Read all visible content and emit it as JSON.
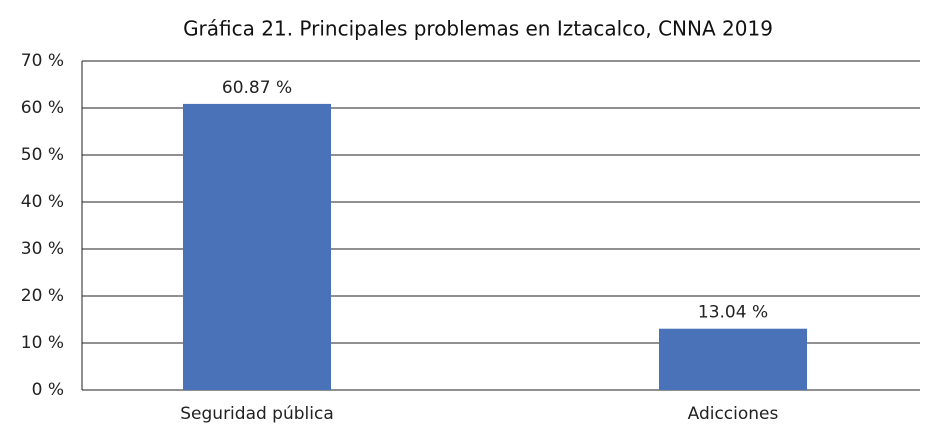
{
  "chart_data": {
    "type": "bar",
    "title": "Gráfica 21. Principales problemas en Iztacalco, CNNA 2019",
    "categories": [
      "Seguridad pública",
      "Adicciones"
    ],
    "values": [
      60.87,
      13.04
    ],
    "value_labels": [
      "60.87 %",
      "13.04 %"
    ],
    "color": "#4a72b8",
    "ylim": [
      0,
      70
    ],
    "yticks": [
      {
        "value": 0,
        "label": "0 %"
      },
      {
        "value": 10,
        "label": "10 %"
      },
      {
        "value": 20,
        "label": "20 %"
      },
      {
        "value": 30,
        "label": "30 %"
      },
      {
        "value": 40,
        "label": "40 %"
      },
      {
        "value": 50,
        "label": "50 %"
      },
      {
        "value": 60,
        "label": "60 %"
      },
      {
        "value": 70,
        "label": "70 %"
      }
    ],
    "grid": true
  }
}
